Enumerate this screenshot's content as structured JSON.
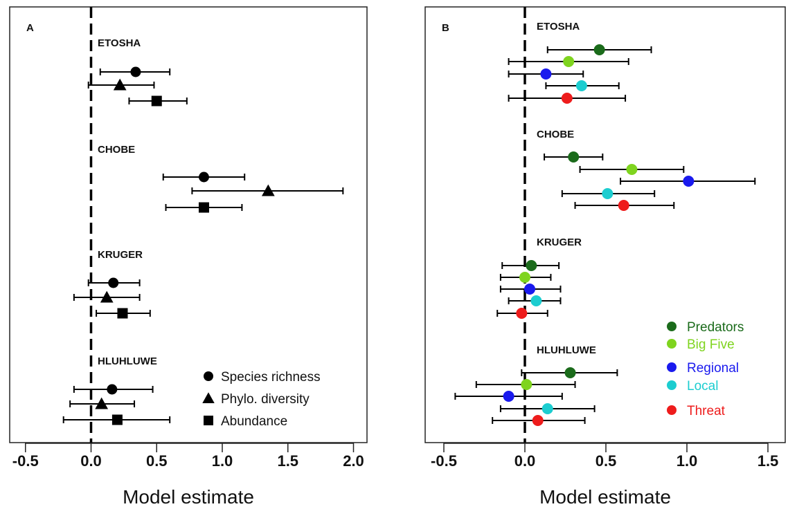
{
  "chart_data": [
    {
      "type": "forest",
      "panel": "A",
      "xlabel": "Model estimate",
      "xlim": [
        -0.6,
        2.1
      ],
      "xticks": [
        "-0.5",
        "0.0",
        "0.5",
        "1.0",
        "1.5",
        "2.0"
      ],
      "xtick_values": [
        -0.5,
        0.0,
        0.5,
        1.0,
        1.5,
        2.0
      ],
      "reference_line": 0,
      "legend_position": "bottom-right",
      "series": [
        {
          "name": "Species richness",
          "marker": "circle",
          "color": "#000000"
        },
        {
          "name": "Phylo. diversity",
          "marker": "triangle",
          "color": "#000000"
        },
        {
          "name": "Abundance",
          "marker": "square",
          "color": "#000000"
        }
      ],
      "groups": [
        {
          "site": "ETOSHA",
          "estimates": [
            {
              "series": "Species richness",
              "est": 0.34,
              "lo": 0.07,
              "hi": 0.6
            },
            {
              "series": "Phylo. diversity",
              "est": 0.22,
              "lo": -0.02,
              "hi": 0.48
            },
            {
              "series": "Abundance",
              "est": 0.5,
              "lo": 0.29,
              "hi": 0.73
            }
          ]
        },
        {
          "site": "CHOBE",
          "estimates": [
            {
              "series": "Species richness",
              "est": 0.86,
              "lo": 0.55,
              "hi": 1.17
            },
            {
              "series": "Phylo. diversity",
              "est": 1.35,
              "lo": 0.77,
              "hi": 1.92
            },
            {
              "series": "Abundance",
              "est": 0.86,
              "lo": 0.57,
              "hi": 1.15
            }
          ]
        },
        {
          "site": "KRUGER",
          "estimates": [
            {
              "series": "Species richness",
              "est": 0.17,
              "lo": -0.02,
              "hi": 0.37
            },
            {
              "series": "Phylo. diversity",
              "est": 0.12,
              "lo": -0.13,
              "hi": 0.37
            },
            {
              "series": "Abundance",
              "est": 0.24,
              "lo": 0.04,
              "hi": 0.45
            }
          ]
        },
        {
          "site": "HLUHLUWE",
          "estimates": [
            {
              "series": "Species richness",
              "est": 0.16,
              "lo": -0.13,
              "hi": 0.47
            },
            {
              "series": "Phylo. diversity",
              "est": 0.08,
              "lo": -0.16,
              "hi": 0.33
            },
            {
              "series": "Abundance",
              "est": 0.2,
              "lo": -0.21,
              "hi": 0.6
            }
          ]
        }
      ]
    },
    {
      "type": "forest",
      "panel": "B",
      "xlabel": "Model estimate",
      "xlim": [
        -0.58,
        1.6
      ],
      "xticks": [
        "-0.5",
        "0.0",
        "0.5",
        "1.0",
        "1.5"
      ],
      "xtick_values": [
        -0.5,
        0.0,
        0.5,
        1.0,
        1.5
      ],
      "reference_line": 0,
      "legend_position": "bottom-right",
      "series": [
        {
          "name": "Predators",
          "marker": "circle",
          "color": "#1b6b1b"
        },
        {
          "name": "Big Five",
          "marker": "circle",
          "color": "#7fd41f"
        },
        {
          "name": "Regional",
          "marker": "circle",
          "color": "#1a1aee"
        },
        {
          "name": "Local",
          "marker": "circle",
          "color": "#1ccdd0"
        },
        {
          "name": "Threat",
          "marker": "circle",
          "color": "#ee1c1c"
        }
      ],
      "groups": [
        {
          "site": "ETOSHA",
          "estimates": [
            {
              "series": "Predators",
              "est": 0.46,
              "lo": 0.14,
              "hi": 0.78
            },
            {
              "series": "Big Five",
              "est": 0.27,
              "lo": -0.1,
              "hi": 0.64
            },
            {
              "series": "Regional",
              "est": 0.13,
              "lo": -0.1,
              "hi": 0.36
            },
            {
              "series": "Local",
              "est": 0.35,
              "lo": 0.13,
              "hi": 0.58
            },
            {
              "series": "Threat",
              "est": 0.26,
              "lo": -0.1,
              "hi": 0.62
            }
          ]
        },
        {
          "site": "CHOBE",
          "estimates": [
            {
              "series": "Predators",
              "est": 0.3,
              "lo": 0.12,
              "hi": 0.48
            },
            {
              "series": "Big Five",
              "est": 0.66,
              "lo": 0.34,
              "hi": 0.98
            },
            {
              "series": "Regional",
              "est": 1.01,
              "lo": 0.59,
              "hi": 1.42
            },
            {
              "series": "Local",
              "est": 0.51,
              "lo": 0.23,
              "hi": 0.8
            },
            {
              "series": "Threat",
              "est": 0.61,
              "lo": 0.31,
              "hi": 0.92
            }
          ]
        },
        {
          "site": "KRUGER",
          "estimates": [
            {
              "series": "Predators",
              "est": 0.04,
              "lo": -0.14,
              "hi": 0.21
            },
            {
              "series": "Big Five",
              "est": 0.0,
              "lo": -0.15,
              "hi": 0.16
            },
            {
              "series": "Regional",
              "est": 0.03,
              "lo": -0.15,
              "hi": 0.22
            },
            {
              "series": "Local",
              "est": 0.07,
              "lo": -0.1,
              "hi": 0.22
            },
            {
              "series": "Threat",
              "est": -0.02,
              "lo": -0.17,
              "hi": 0.14
            }
          ]
        },
        {
          "site": "HLUHLUWE",
          "estimates": [
            {
              "series": "Predators",
              "est": 0.28,
              "lo": -0.02,
              "hi": 0.57
            },
            {
              "series": "Big Five",
              "est": 0.01,
              "lo": -0.3,
              "hi": 0.31
            },
            {
              "series": "Regional",
              "est": -0.1,
              "lo": -0.43,
              "hi": 0.23
            },
            {
              "series": "Local",
              "est": 0.14,
              "lo": -0.15,
              "hi": 0.43
            },
            {
              "series": "Threat",
              "est": 0.08,
              "lo": -0.2,
              "hi": 0.37
            }
          ]
        }
      ]
    }
  ]
}
